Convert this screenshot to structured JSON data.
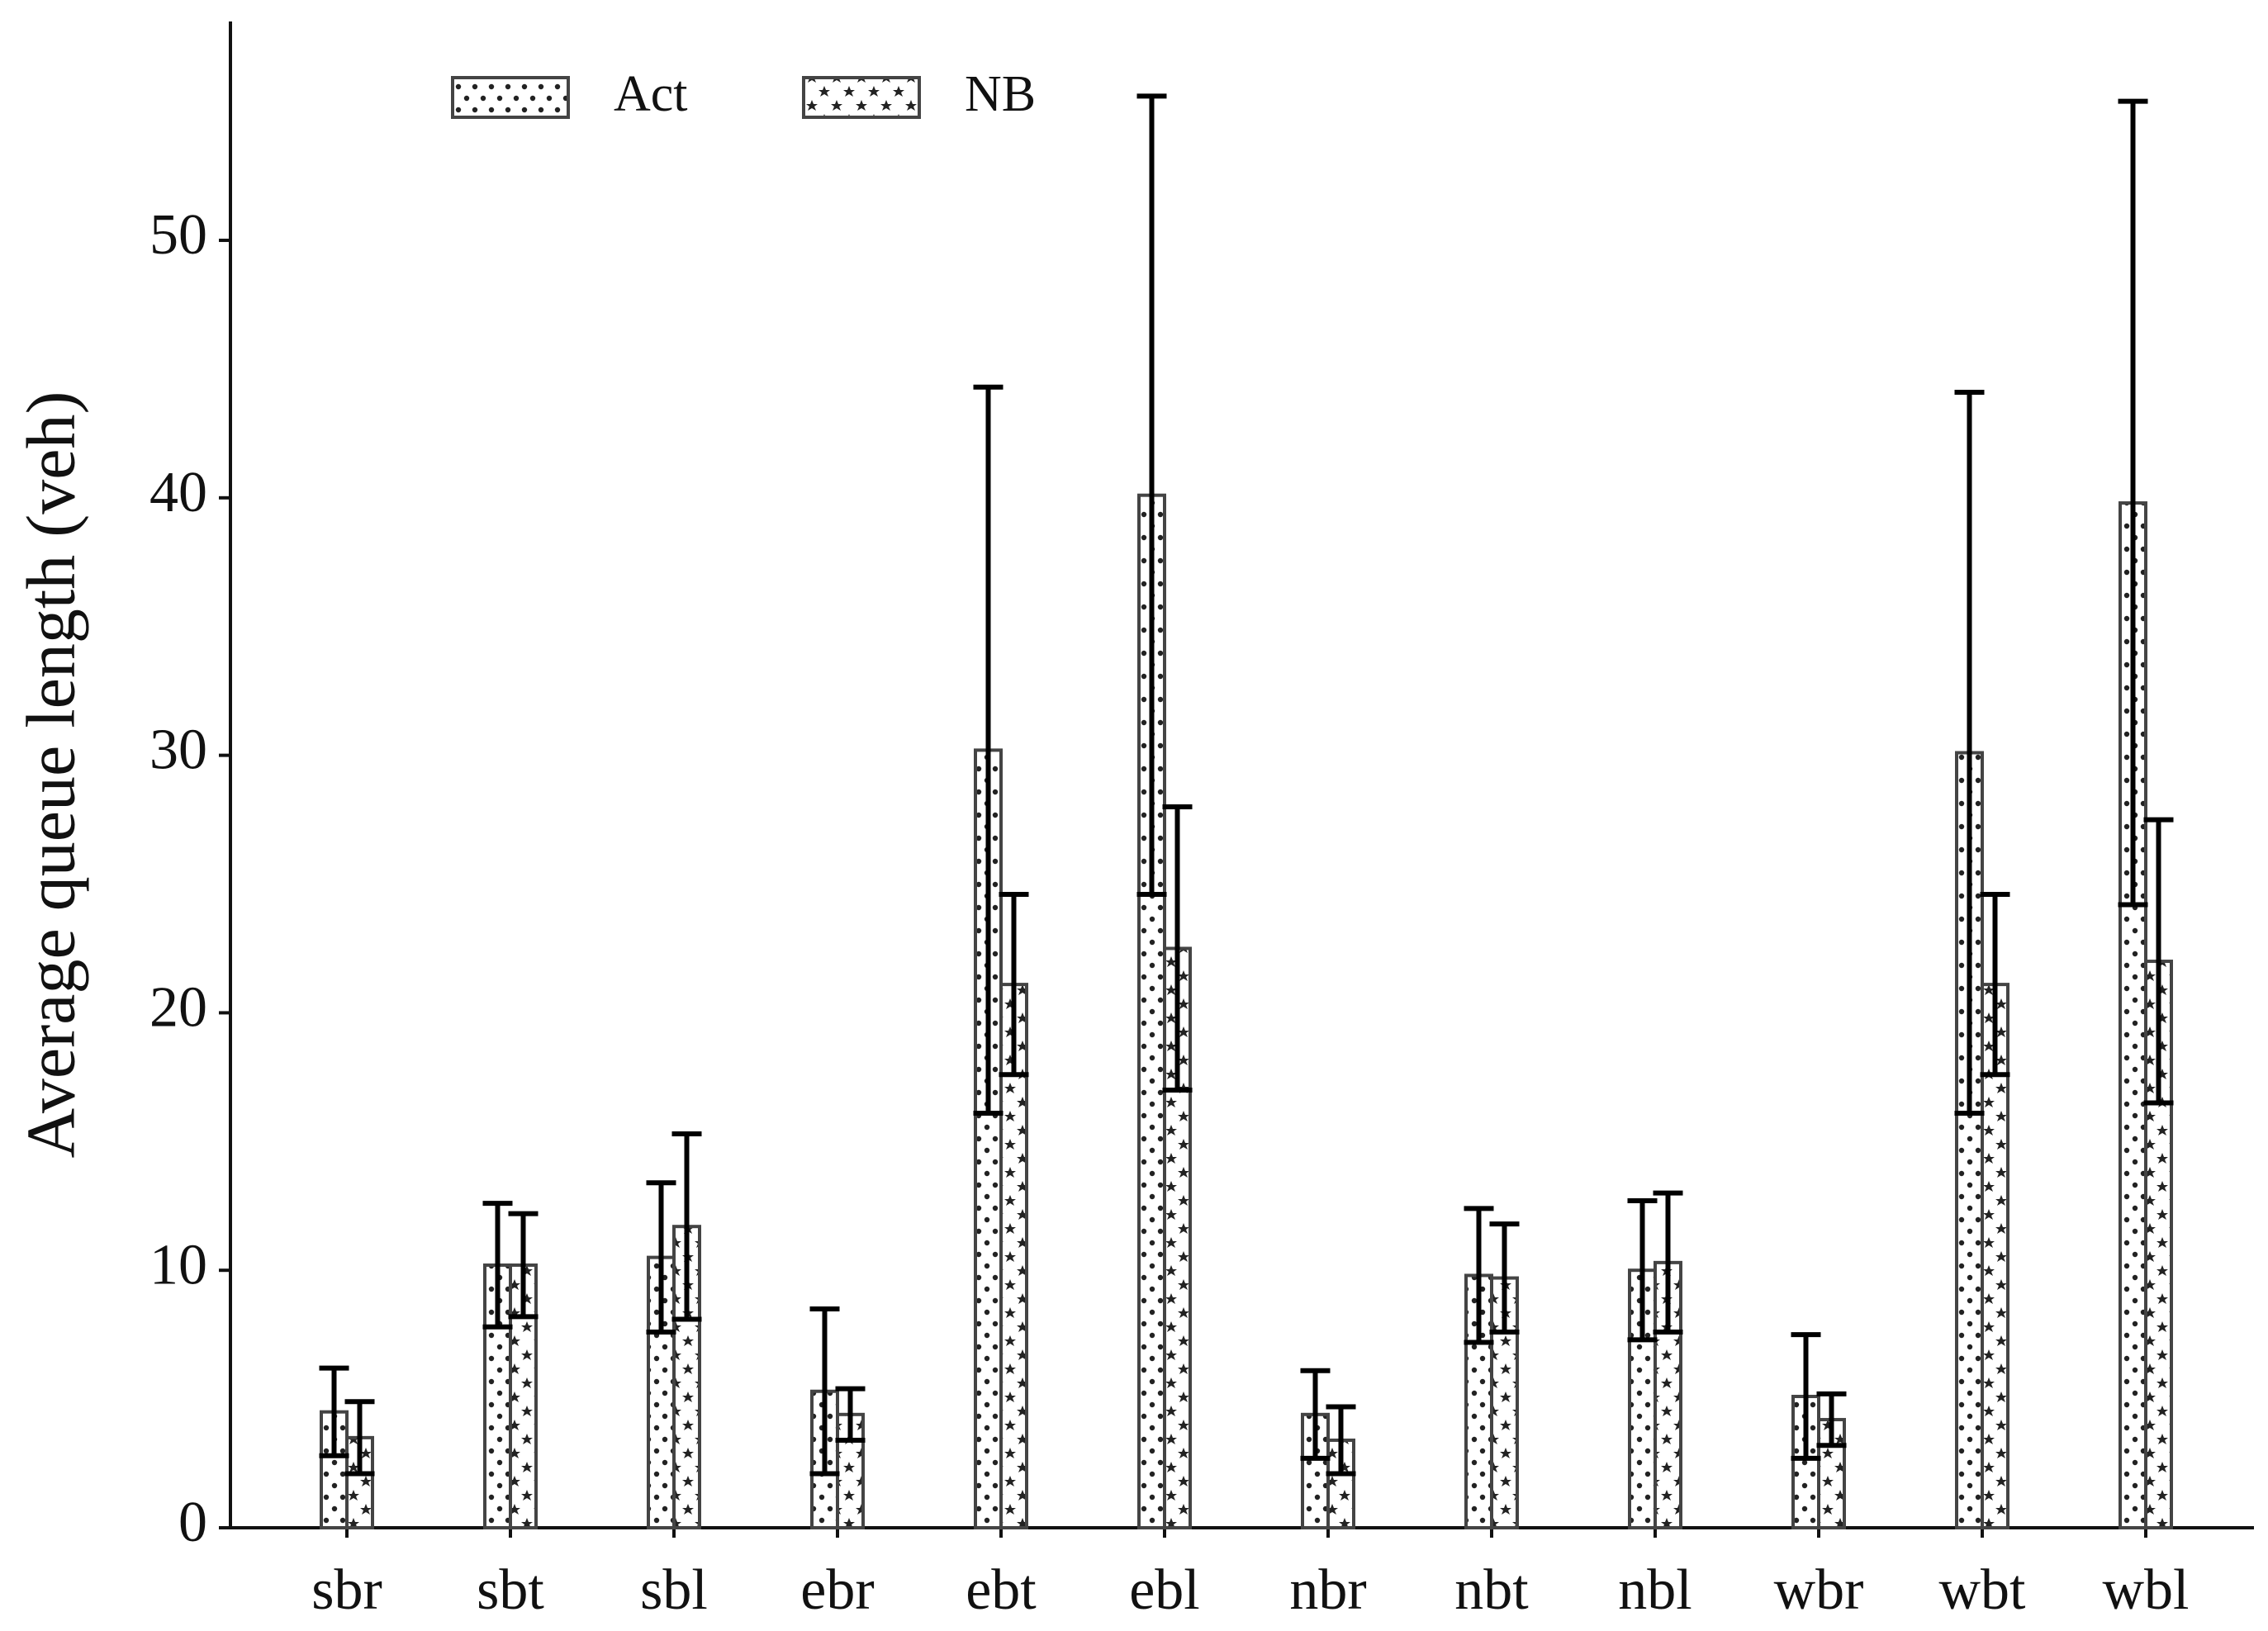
{
  "chart_data": {
    "type": "bar",
    "ylabel": "Average queue length (veh)",
    "categories": [
      "sbr",
      "sbt",
      "sbl",
      "ebr",
      "ebt",
      "ebl",
      "nbr",
      "nbt",
      "nbl",
      "wbr",
      "wbt",
      "wbl"
    ],
    "series": [
      {
        "name": "Act",
        "pattern": "dots",
        "color": "#444444",
        "values": [
          4.5,
          10.2,
          10.5,
          5.3,
          30.2,
          40.1,
          4.4,
          9.8,
          10.0,
          5.1,
          30.1,
          39.8
        ],
        "errors": [
          1.7,
          2.4,
          2.9,
          3.2,
          14.1,
          15.5,
          1.7,
          2.6,
          2.7,
          2.4,
          14.0,
          15.6
        ]
      },
      {
        "name": "NB",
        "pattern": "stars",
        "color": "#444444",
        "values": [
          3.5,
          10.2,
          11.7,
          4.4,
          21.1,
          22.5,
          3.4,
          9.7,
          10.3,
          4.2,
          21.1,
          22.0
        ],
        "errors": [
          1.4,
          2.0,
          3.6,
          1.0,
          3.5,
          5.5,
          1.3,
          2.1,
          2.7,
          1.0,
          3.5,
          5.5
        ]
      }
    ],
    "ylim": [
      0,
      58.5
    ],
    "yticks": [
      0,
      10,
      20,
      30,
      40,
      50
    ],
    "grid": false,
    "legend": "upper left"
  }
}
